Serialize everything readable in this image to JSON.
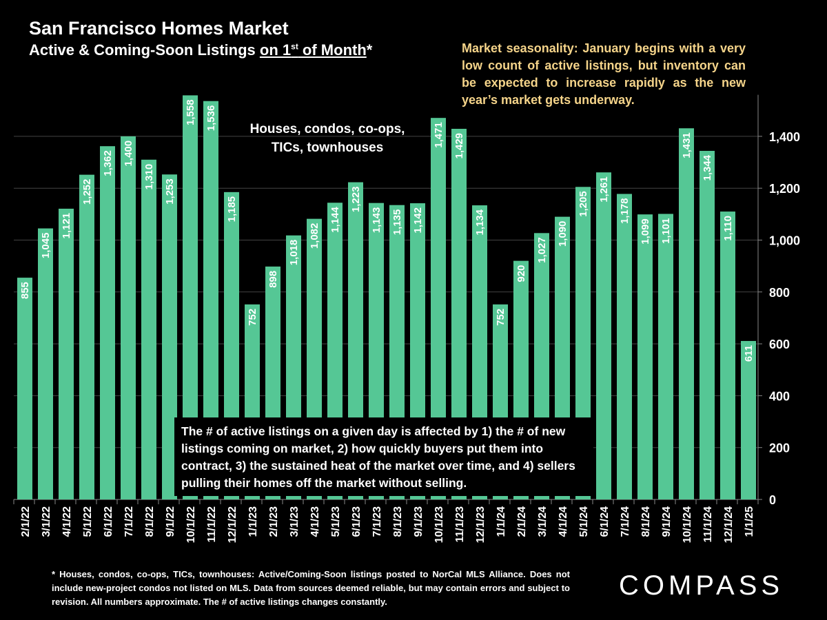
{
  "header": {
    "title": "San Francisco Homes Market",
    "subtitle_prefix": "Active & Coming-Soon Listings ",
    "subtitle_underlined": "on 1",
    "subtitle_sup": "st",
    "subtitle_underlined2": " of Month",
    "subtitle_suffix": "*"
  },
  "annotations": {
    "seasonality": "Market seasonality:  January begins with a very low count of active listings, but inventory can be expected to increase rapidly as the new year’s market gets underway.",
    "types": "Houses, condos, co-ops, TICs, townhouses",
    "note": "The # of active listings on a given day is affected by 1) the # of new listings coming on market, 2) how quickly buyers put them into contract, 3) the sustained heat of the market over time, and 4) sellers pulling their homes off the market without selling."
  },
  "footnote": "* Houses, condos, co-ops, TICs, townhouses: Active/Coming-Soon listings posted to NorCal MLS Alliance. Does not include new-project condos not listed on MLS. Data from sources deemed reliable, but may contain errors and subject to revision. All numbers approximate. The # of active listings changes constantly.",
  "logo": "COMPASS",
  "colors": {
    "bar": "#55c795",
    "accent": "#f5d48a",
    "grid": "#444444"
  },
  "chart_data": {
    "type": "bar",
    "title": "San Francisco Homes Market",
    "xlabel": "",
    "ylabel": "",
    "ylim": [
      0,
      1600
    ],
    "yticks": [
      0,
      200,
      400,
      600,
      800,
      1000,
      1200,
      1400
    ],
    "ytick_labels": [
      "0",
      "200",
      "400",
      "600",
      "800",
      "1,000",
      "1,200",
      "1,400"
    ],
    "grid": true,
    "categories": [
      "2/1/22",
      "3/1/22",
      "4/1/22",
      "5/1/22",
      "6/1/22",
      "7/1/22",
      "8/1/22",
      "9/1/22",
      "10/1/22",
      "11/1/22",
      "12/1/22",
      "1/1/23",
      "2/1/23",
      "3/1/23",
      "4/1/23",
      "5/1/23",
      "6/1/23",
      "7/1/23",
      "8/1/23",
      "9/1/23",
      "10/1/23",
      "11/1/23",
      "12/1/23",
      "1/1/24",
      "2/1/24",
      "3/1/24",
      "4/1/24",
      "5/1/24",
      "6/1/24",
      "7/1/24",
      "8/1/24",
      "9/1/24",
      "10/1/24",
      "11/1/24",
      "12/1/24",
      "1/1/25"
    ],
    "values": [
      855,
      1045,
      1121,
      1252,
      1362,
      1400,
      1310,
      1253,
      1558,
      1536,
      1185,
      752,
      898,
      1018,
      1082,
      1144,
      1223,
      1143,
      1135,
      1142,
      1471,
      1429,
      1134,
      752,
      920,
      1027,
      1090,
      1205,
      1261,
      1178,
      1099,
      1101,
      1431,
      1344,
      1110,
      611
    ],
    "value_labels": [
      "855",
      "1,045",
      "1,121",
      "1,252",
      "1,362",
      "1,400",
      "1,310",
      "1,253",
      "1,558",
      "1,536",
      "1,185",
      "752",
      "898",
      "1,018",
      "1,082",
      "1,144",
      "1,223",
      "1,143",
      "1,135",
      "1,142",
      "1,471",
      "1,429",
      "1,134",
      "752",
      "920",
      "1,027",
      "1,090",
      "1,205",
      "1,261",
      "1,178",
      "1,099",
      "1,101",
      "1,431",
      "1,344",
      "1,110",
      "611"
    ]
  }
}
